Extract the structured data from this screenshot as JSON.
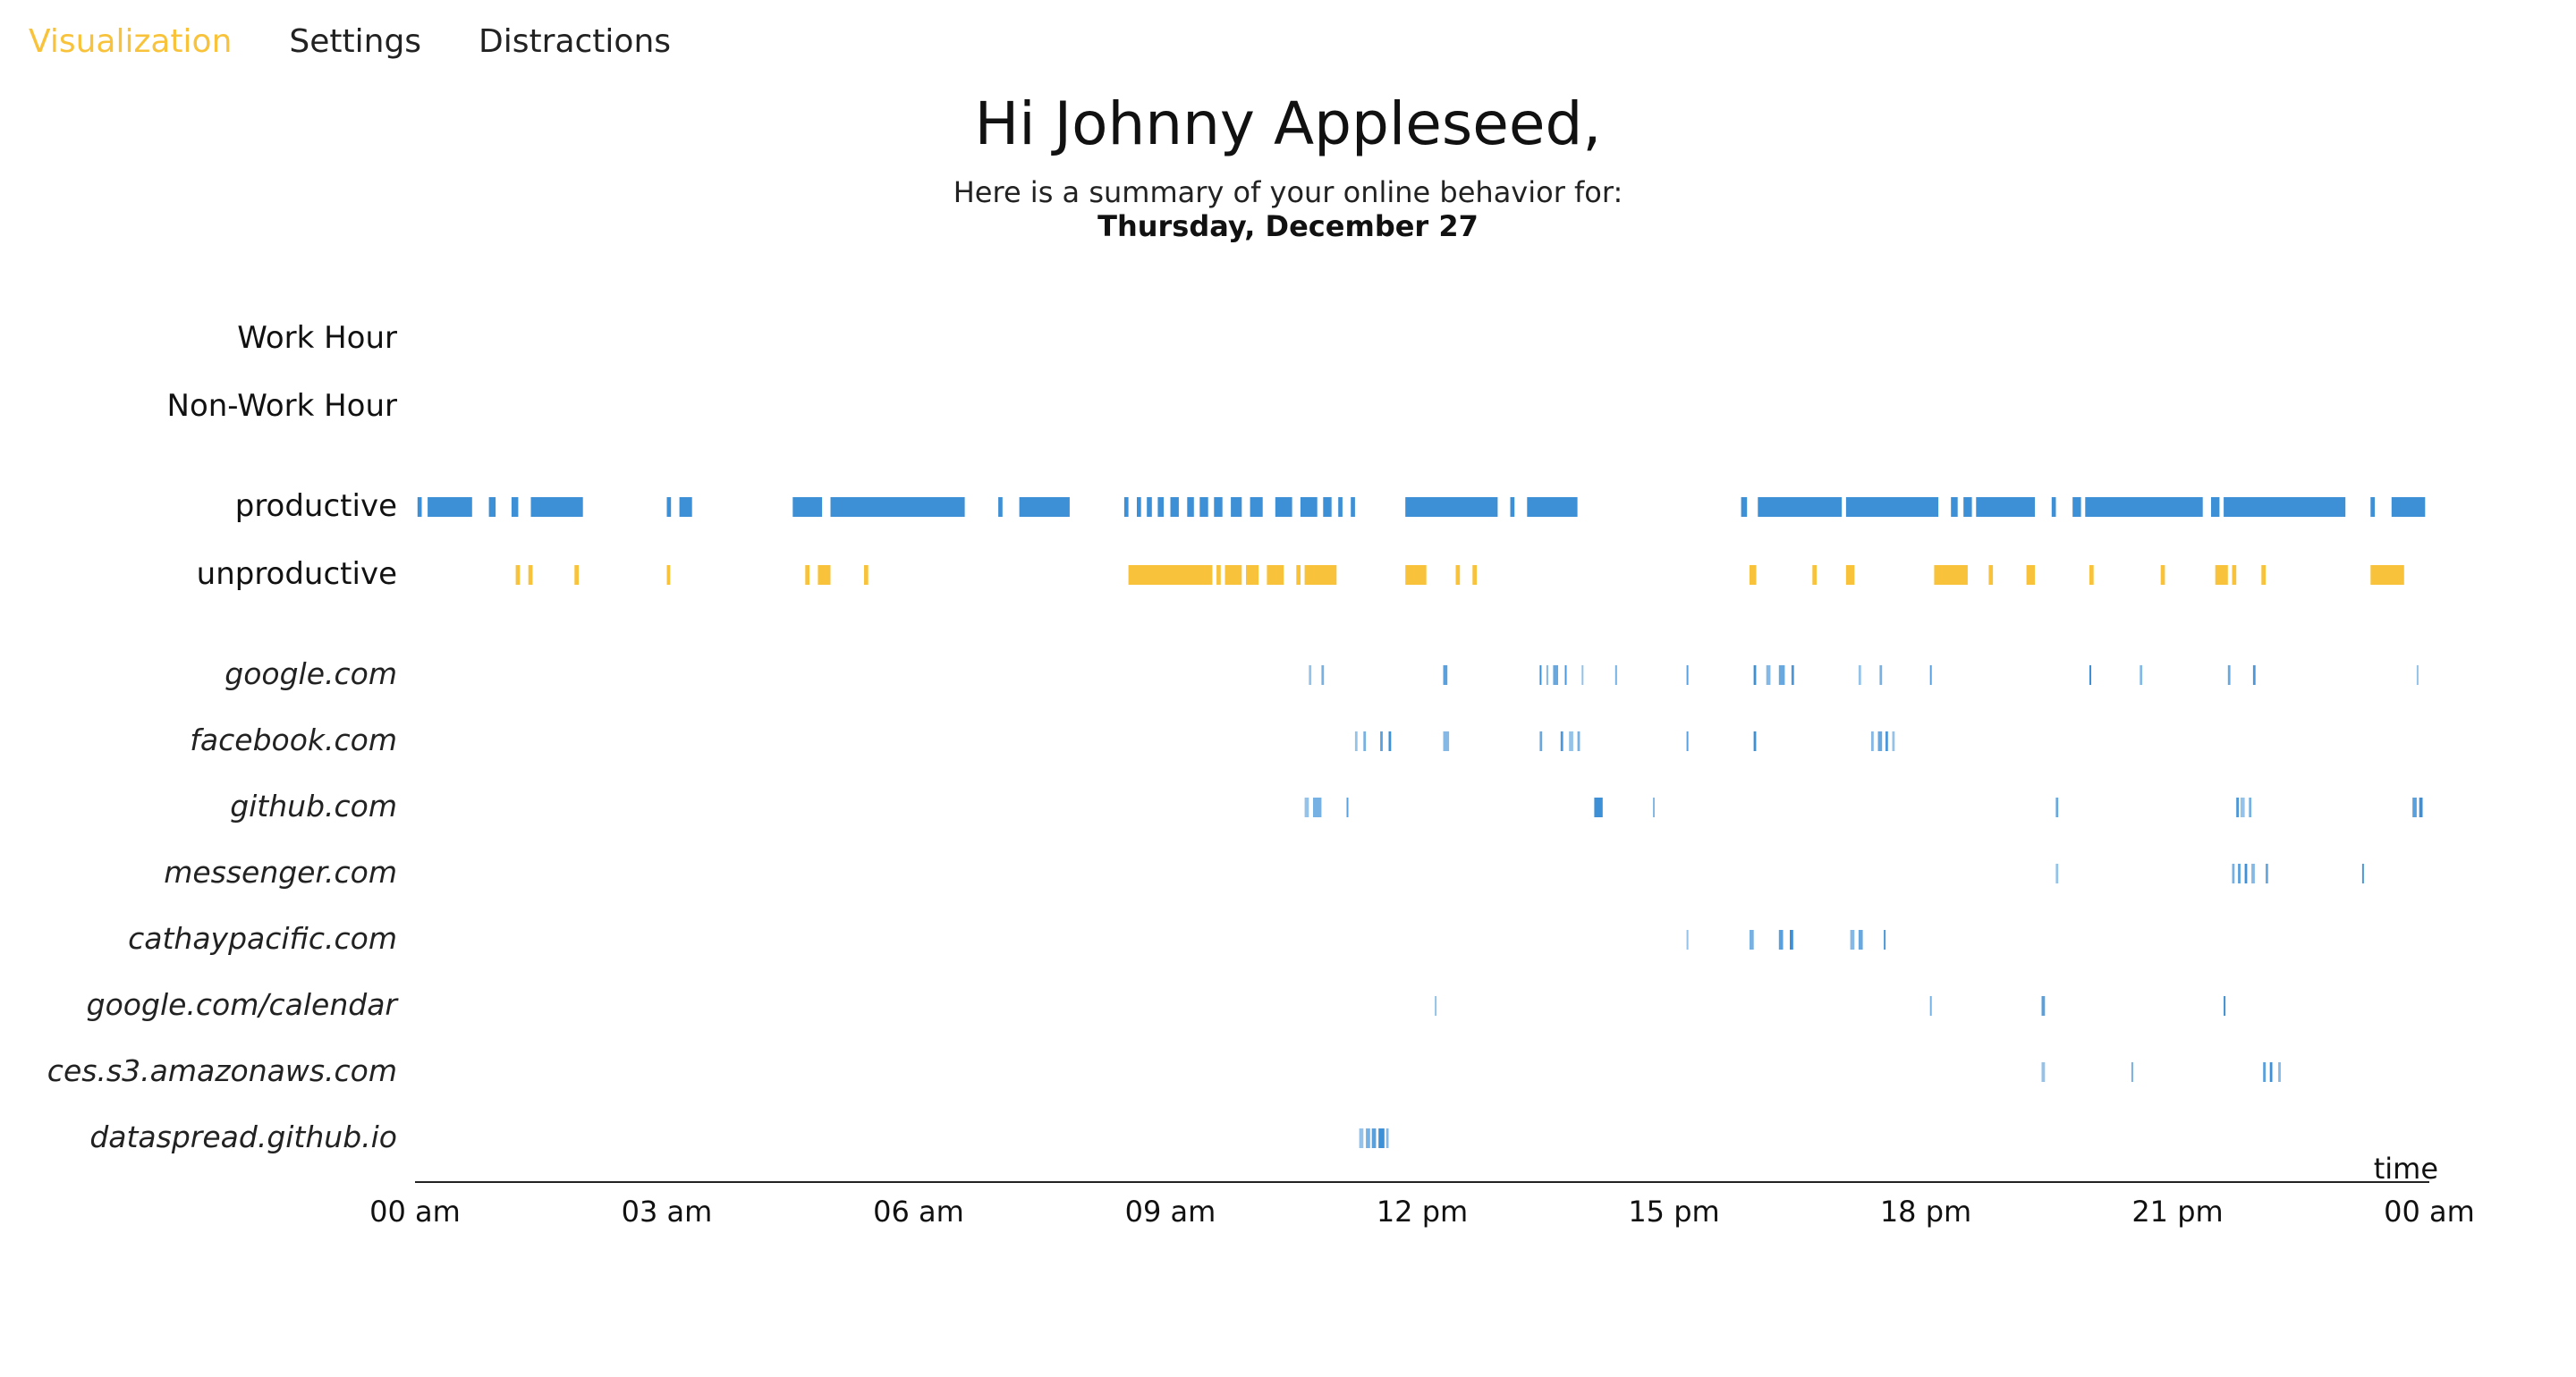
{
  "nav": [
    {
      "label": "Visualization",
      "active": true
    },
    {
      "label": "Settings",
      "active": false
    },
    {
      "label": "Distractions",
      "active": false
    }
  ],
  "header": {
    "greeting": "Hi Johnny Appleseed,",
    "subtitle": "Here is a summary of your online behavior for:",
    "date": "Thursday, December 27"
  },
  "colors": {
    "productive": "#3d8fd6",
    "unproductive": "#f8c33b",
    "accent": "#f8c33b",
    "axis": "#222222"
  },
  "chart_data": {
    "type": "timeline",
    "xlabel": "time",
    "xlim": [
      0,
      24
    ],
    "xticks": [
      "00 am",
      "03 am",
      "06 am",
      "09 am",
      "12 pm",
      "15 pm",
      "18 pm",
      "21 pm",
      "00 am"
    ],
    "rows": [
      {
        "label": "Work Hour",
        "style": "cat",
        "color": "productive",
        "events": []
      },
      {
        "label": "Non-Work Hour",
        "style": "cat",
        "color": "productive",
        "events": []
      },
      {
        "label": "productive",
        "style": "cat",
        "color": "productive",
        "events": [
          [
            0.03,
            0.08
          ],
          [
            0.15,
            0.68
          ],
          [
            0.88,
            0.96
          ],
          [
            1.15,
            1.23
          ],
          [
            1.38,
            2.0
          ],
          [
            3.0,
            3.05
          ],
          [
            3.15,
            3.3
          ],
          [
            4.5,
            4.85
          ],
          [
            4.95,
            6.55
          ],
          [
            6.95,
            7.0
          ],
          [
            7.2,
            7.8
          ],
          [
            8.45,
            8.5
          ],
          [
            8.6,
            8.65
          ],
          [
            8.72,
            8.78
          ],
          [
            8.85,
            8.92
          ],
          [
            9.0,
            9.1
          ],
          [
            9.2,
            9.28
          ],
          [
            9.35,
            9.45
          ],
          [
            9.52,
            9.62
          ],
          [
            9.72,
            9.85
          ],
          [
            9.95,
            10.1
          ],
          [
            10.25,
            10.45
          ],
          [
            10.55,
            10.75
          ],
          [
            10.82,
            10.92
          ],
          [
            11.0,
            11.05
          ],
          [
            11.15,
            11.2
          ],
          [
            11.8,
            12.9
          ],
          [
            13.05,
            13.1
          ],
          [
            13.25,
            13.85
          ],
          [
            15.8,
            15.87
          ],
          [
            16.0,
            17.0
          ],
          [
            17.05,
            18.15
          ],
          [
            18.3,
            18.38
          ],
          [
            18.45,
            18.55
          ],
          [
            18.6,
            19.3
          ],
          [
            19.5,
            19.55
          ],
          [
            19.75,
            19.85
          ],
          [
            19.9,
            21.3
          ],
          [
            21.4,
            21.5
          ],
          [
            21.55,
            23.0
          ],
          [
            23.3,
            23.35
          ],
          [
            23.55,
            23.95
          ]
        ]
      },
      {
        "label": "unproductive",
        "style": "cat",
        "color": "unproductive",
        "events": [
          [
            1.2,
            1.25
          ],
          [
            1.35,
            1.4
          ],
          [
            1.9,
            1.95
          ],
          [
            3.0,
            3.04
          ],
          [
            4.65,
            4.7
          ],
          [
            4.8,
            4.95
          ],
          [
            5.35,
            5.4
          ],
          [
            8.5,
            9.5
          ],
          [
            9.55,
            9.6
          ],
          [
            9.65,
            9.85
          ],
          [
            9.9,
            10.05
          ],
          [
            10.15,
            10.35
          ],
          [
            10.5,
            10.55
          ],
          [
            10.6,
            10.98
          ],
          [
            11.8,
            12.05
          ],
          [
            12.4,
            12.45
          ],
          [
            12.6,
            12.65
          ],
          [
            15.9,
            15.98
          ],
          [
            16.65,
            16.7
          ],
          [
            17.05,
            17.15
          ],
          [
            18.1,
            18.5
          ],
          [
            18.75,
            18.8
          ],
          [
            19.2,
            19.3
          ],
          [
            19.95,
            20.0
          ],
          [
            20.8,
            20.85
          ],
          [
            21.45,
            21.6
          ],
          [
            21.65,
            21.7
          ],
          [
            22.0,
            22.05
          ],
          [
            23.3,
            23.7
          ]
        ]
      },
      {
        "label": "google.com",
        "style": "site",
        "color": "productive",
        "events": [
          [
            10.65,
            10.68
          ],
          [
            10.8,
            10.83
          ],
          [
            12.25,
            12.3
          ],
          [
            13.4,
            13.42
          ],
          [
            13.48,
            13.5
          ],
          [
            13.56,
            13.62
          ],
          [
            13.7,
            13.72
          ],
          [
            13.9,
            13.92
          ],
          [
            14.3,
            14.32
          ],
          [
            15.15,
            15.17
          ],
          [
            15.95,
            15.98
          ],
          [
            16.1,
            16.15
          ],
          [
            16.25,
            16.32
          ],
          [
            16.4,
            16.43
          ],
          [
            17.2,
            17.23
          ],
          [
            17.45,
            17.48
          ],
          [
            18.05,
            18.07
          ],
          [
            19.95,
            19.97
          ],
          [
            20.55,
            20.58
          ],
          [
            21.6,
            21.63
          ],
          [
            21.9,
            21.93
          ],
          [
            23.85,
            23.87
          ]
        ]
      },
      {
        "label": "facebook.com",
        "style": "site",
        "color": "productive",
        "events": [
          [
            11.2,
            11.23
          ],
          [
            11.3,
            11.33
          ],
          [
            11.5,
            11.53
          ],
          [
            11.6,
            11.63
          ],
          [
            12.25,
            12.32
          ],
          [
            13.4,
            13.43
          ],
          [
            13.65,
            13.68
          ],
          [
            13.75,
            13.8
          ],
          [
            13.85,
            13.88
          ],
          [
            15.15,
            15.17
          ],
          [
            15.95,
            15.98
          ],
          [
            17.35,
            17.38
          ],
          [
            17.43,
            17.48
          ],
          [
            17.52,
            17.55
          ],
          [
            17.6,
            17.63
          ]
        ]
      },
      {
        "label": "github.com",
        "style": "site",
        "color": "productive",
        "events": [
          [
            10.6,
            10.65
          ],
          [
            10.7,
            10.8
          ],
          [
            11.1,
            11.12
          ],
          [
            14.05,
            14.15
          ],
          [
            14.75,
            14.77
          ],
          [
            19.55,
            19.58
          ],
          [
            21.7,
            21.73
          ],
          [
            21.75,
            21.8
          ],
          [
            21.85,
            21.88
          ],
          [
            23.8,
            23.85
          ],
          [
            23.88,
            23.92
          ]
        ]
      },
      {
        "label": "messenger.com",
        "style": "site",
        "color": "productive",
        "events": [
          [
            19.55,
            19.58
          ],
          [
            21.65,
            21.68
          ],
          [
            21.72,
            21.75
          ],
          [
            21.8,
            21.83
          ],
          [
            21.88,
            21.92
          ],
          [
            22.05,
            22.08
          ],
          [
            23.2,
            23.22
          ]
        ]
      },
      {
        "label": "cathaypacific.com",
        "style": "site",
        "color": "productive",
        "events": [
          [
            15.15,
            15.17
          ],
          [
            15.9,
            15.95
          ],
          [
            16.25,
            16.3
          ],
          [
            16.38,
            16.42
          ],
          [
            17.1,
            17.15
          ],
          [
            17.2,
            17.25
          ],
          [
            17.5,
            17.52
          ]
        ]
      },
      {
        "label": "google.com/calendar",
        "style": "site",
        "color": "productive",
        "events": [
          [
            12.15,
            12.17
          ],
          [
            18.05,
            18.07
          ],
          [
            19.38,
            19.42
          ],
          [
            21.55,
            21.57
          ]
        ]
      },
      {
        "label": "ces.s3.amazonaws.com",
        "style": "site",
        "color": "productive",
        "events": [
          [
            19.38,
            19.42
          ],
          [
            20.45,
            20.47
          ],
          [
            22.02,
            22.05
          ],
          [
            22.1,
            22.13
          ],
          [
            22.2,
            22.23
          ]
        ]
      },
      {
        "label": "dataspread.github.io",
        "style": "site",
        "color": "productive",
        "events": [
          [
            11.25,
            11.3
          ],
          [
            11.33,
            11.38
          ],
          [
            11.4,
            11.45
          ],
          [
            11.48,
            11.55
          ],
          [
            11.57,
            11.6
          ]
        ]
      }
    ]
  }
}
